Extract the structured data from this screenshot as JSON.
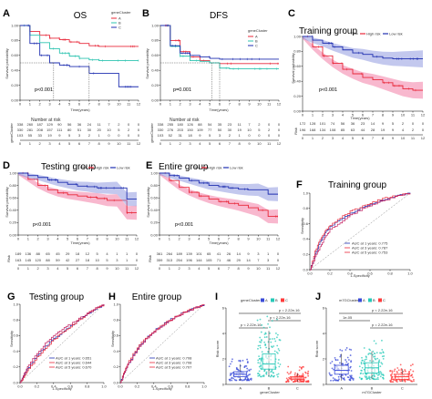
{
  "panels": [
    {
      "id": "A",
      "label": "A",
      "title": "OS",
      "pvalue": "p<0.001",
      "xlabel": "Time(years)",
      "ylabel": "Survival probability",
      "legend_title": "geneCluster",
      "legend": [
        "A",
        "B",
        "C"
      ],
      "risk_title": "Number at risk",
      "risk_axis": "geneCluster",
      "risk_rows": [
        [
          "338",
          "260",
          "187",
          "129",
          "90",
          "56",
          "36",
          "24",
          "11",
          "7",
          "2",
          "0",
          "0"
        ],
        [
          "330",
          "281",
          "208",
          "157",
          "111",
          "80",
          "51",
          "30",
          "20",
          "10",
          "5",
          "2",
          "0"
        ],
        [
          "103",
          "55",
          "33",
          "19",
          "9",
          "5",
          "3",
          "2",
          "1",
          "0",
          "0",
          "0",
          "0"
        ]
      ]
    },
    {
      "id": "B",
      "label": "B",
      "title": "DFS",
      "pvalue": "p=0.001",
      "xlabel": "Time(years)",
      "ylabel": "Survival probability",
      "legend_title": "geneCluster",
      "legend": [
        "A",
        "B",
        "C"
      ],
      "risk_title": "Number at risk",
      "risk_axis": "geneCluster",
      "risk_rows": [
        [
          "338",
          "255",
          "180",
          "126",
          "88",
          "54",
          "35",
          "23",
          "11",
          "7",
          "2",
          "0",
          "0"
        ],
        [
          "330",
          "276",
          "203",
          "150",
          "109",
          "77",
          "50",
          "30",
          "19",
          "10",
          "5",
          "2",
          "0"
        ],
        [
          "103",
          "52",
          "31",
          "18",
          "9",
          "5",
          "3",
          "2",
          "1",
          "0",
          "0",
          "0",
          "0"
        ]
      ]
    },
    {
      "id": "C",
      "label": "C",
      "title": "Training group",
      "pvalue": "p<0.001",
      "xlabel": "Time(years)",
      "ylabel": "Survival probability",
      "legend_title": "Risk",
      "legend": [
        "High risk",
        "Low risk"
      ],
      "risk_axis": "Risk",
      "risk_rows": [
        [
          "172",
          "128",
          "101",
          "74",
          "56",
          "36",
          "23",
          "14",
          "9",
          "5",
          "2",
          "0",
          "0"
        ],
        [
          "196",
          "168",
          "134",
          "108",
          "85",
          "63",
          "44",
          "28",
          "19",
          "9",
          "4",
          "2",
          "0"
        ]
      ]
    },
    {
      "id": "D",
      "label": "D",
      "title": "Testing group",
      "pvalue": "p<0.001",
      "xlabel": "Time(years)",
      "ylabel": "Survival probability",
      "legend_title": "Risk",
      "legend": [
        "High risk",
        "Low risk"
      ],
      "risk_axis": "Risk",
      "risk_rows": [
        [
          "189",
          "136",
          "88",
          "65",
          "45",
          "29",
          "18",
          "12",
          "5",
          "4",
          "1",
          "1",
          "0"
        ],
        [
          "163",
          "145",
          "120",
          "88",
          "59",
          "42",
          "27",
          "18",
          "10",
          "5",
          "3",
          "1",
          "0"
        ]
      ]
    },
    {
      "id": "E",
      "label": "E",
      "title": "Entire group",
      "pvalue": "p<0.001",
      "xlabel": "Time(years)",
      "ylabel": "Survival probability",
      "legend_title": "Risk",
      "legend": [
        "High risk",
        "Low risk"
      ],
      "risk_axis": "Risk",
      "risk_rows": [
        [
          "361",
          "264",
          "189",
          "139",
          "101",
          "65",
          "41",
          "26",
          "14",
          "9",
          "3",
          "1",
          "0"
        ],
        [
          "359",
          "313",
          "254",
          "196",
          "144",
          "105",
          "71",
          "46",
          "29",
          "14",
          "7",
          "3",
          "0"
        ]
      ]
    },
    {
      "id": "F",
      "label": "F",
      "title": "Training group",
      "xlabel": "1-Specificity",
      "ylabel": "Sensitivity",
      "legend": [
        "AUC at 1 years: 0.775",
        "AUC at 3 years: 0.787",
        "AUC at 5 years: 0.753"
      ]
    },
    {
      "id": "G",
      "label": "G",
      "title": "Testing group",
      "xlabel": "1-Specificity",
      "ylabel": "Sensitivity",
      "legend": [
        "AUC at 1 years: 0.651",
        "AUC at 3 years: 0.644",
        "AUC at 5 years: 0.670"
      ]
    },
    {
      "id": "H",
      "label": "H",
      "title": "Entire group",
      "xlabel": "1-Specificity",
      "ylabel": "Sensitivity",
      "legend": [
        "AUC at 1 years: 0.708",
        "AUC at 3 years: 0.708",
        "AUC at 5 years: 0.707"
      ]
    },
    {
      "id": "I",
      "label": "I",
      "legend_title": "geneCluster",
      "legend": [
        "A",
        "B",
        "C"
      ],
      "xlabel": "geneCluster",
      "ylabel": "Risk score",
      "annotations": [
        "p < 2.22e-16",
        "p < 2.22e-16",
        "p = 2.22e-16"
      ]
    },
    {
      "id": "J",
      "label": "J",
      "legend_title": "m7GCluster",
      "legend": [
        "A",
        "B",
        "C"
      ],
      "xlabel": "m7GCluster",
      "ylabel": "Risk score",
      "annotations": [
        "p = 2.22e-16",
        "1e-05",
        "p < 2.22e-16"
      ]
    }
  ],
  "colors": {
    "red": "#e8283a",
    "teal": "#2ec4b0",
    "blue": "#1f2fb0",
    "pink": "#f06292",
    "lightblue": "#7b86d9",
    "boxred": "#ff3b3b",
    "boxteal": "#27c9b8",
    "boxblue": "#3a4bd8"
  },
  "chart_data": [
    {
      "type": "line",
      "panel": "A",
      "xlim": [
        0,
        12
      ],
      "ylim": [
        0,
        1
      ],
      "x": [
        0,
        1,
        2,
        3,
        4,
        5,
        6,
        7,
        8,
        9,
        10,
        11,
        12
      ],
      "series": [
        {
          "name": "A",
          "values": [
            1,
            0.92,
            0.87,
            0.83,
            0.81,
            0.78,
            0.76,
            0.73,
            0.72,
            0.72,
            0.72,
            0.72,
            0.72
          ]
        },
        {
          "name": "B",
          "values": [
            1,
            0.87,
            0.77,
            0.69,
            0.63,
            0.59,
            0.56,
            0.54,
            0.53,
            0.53,
            0.53,
            0.53,
            0.53
          ]
        },
        {
          "name": "C",
          "values": [
            1,
            0.76,
            0.6,
            0.5,
            0.47,
            0.45,
            0.45,
            0.36,
            0.36,
            0.36,
            0.18,
            0.18,
            0.18
          ]
        }
      ]
    },
    {
      "type": "line",
      "panel": "B",
      "xlim": [
        0,
        12
      ],
      "ylim": [
        0,
        1
      ],
      "x": [
        0,
        1,
        2,
        3,
        4,
        5,
        6,
        7,
        8,
        9,
        10,
        11,
        12
      ],
      "series": [
        {
          "name": "A",
          "values": [
            1,
            0.8,
            0.65,
            0.58,
            0.53,
            0.5,
            0.49,
            0.49,
            0.49,
            0.49,
            0.49,
            0.49,
            0.49
          ]
        },
        {
          "name": "B",
          "values": [
            1,
            0.72,
            0.59,
            0.53,
            0.52,
            0.5,
            0.43,
            0.42,
            0.42,
            0.42,
            0.42,
            0.42,
            0.42
          ]
        },
        {
          "name": "C",
          "values": [
            1,
            0.73,
            0.63,
            0.6,
            0.58,
            0.56,
            0.55,
            0.55,
            0.55,
            0.55,
            0.55,
            0.55,
            0.55
          ]
        }
      ]
    },
    {
      "type": "line",
      "panel": "C",
      "xlim": [
        0,
        12
      ],
      "ylim": [
        0,
        1
      ],
      "x": [
        0,
        1,
        2,
        3,
        4,
        5,
        6,
        7,
        8,
        9,
        10,
        11,
        12
      ],
      "series": [
        {
          "name": "High risk",
          "values": [
            1,
            0.86,
            0.74,
            0.64,
            0.56,
            0.5,
            0.45,
            0.42,
            0.38,
            0.34,
            0.3,
            0.28,
            0.28
          ]
        },
        {
          "name": "Low risk",
          "values": [
            1,
            0.95,
            0.91,
            0.86,
            0.82,
            0.78,
            0.76,
            0.73,
            0.71,
            0.7,
            0.7,
            0.7,
            0.7
          ]
        }
      ]
    },
    {
      "type": "line",
      "panel": "D",
      "xlim": [
        0,
        12
      ],
      "ylim": [
        0,
        1
      ],
      "x": [
        0,
        1,
        2,
        3,
        4,
        5,
        6,
        7,
        8,
        9,
        10,
        11,
        12
      ],
      "series": [
        {
          "name": "High risk",
          "values": [
            1,
            0.9,
            0.8,
            0.73,
            0.68,
            0.65,
            0.63,
            0.61,
            0.59,
            0.56,
            0.56,
            0.36,
            0.36
          ]
        },
        {
          "name": "Low risk",
          "values": [
            1,
            0.96,
            0.93,
            0.89,
            0.85,
            0.82,
            0.79,
            0.78,
            0.76,
            0.76,
            0.76,
            0.58,
            0.58
          ]
        }
      ]
    },
    {
      "type": "line",
      "panel": "E",
      "xlim": [
        0,
        12
      ],
      "ylim": [
        0,
        1
      ],
      "x": [
        0,
        1,
        2,
        3,
        4,
        5,
        6,
        7,
        8,
        9,
        10,
        11,
        12
      ],
      "series": [
        {
          "name": "High risk",
          "values": [
            1,
            0.88,
            0.77,
            0.69,
            0.63,
            0.58,
            0.54,
            0.51,
            0.48,
            0.44,
            0.4,
            0.3,
            0.3
          ]
        },
        {
          "name": "Low risk",
          "values": [
            1,
            0.96,
            0.92,
            0.88,
            0.84,
            0.8,
            0.78,
            0.76,
            0.74,
            0.73,
            0.73,
            0.66,
            0.66
          ]
        }
      ]
    },
    {
      "type": "line",
      "panel": "F",
      "xlim": [
        0,
        1
      ],
      "ylim": [
        0,
        1
      ],
      "series": [
        {
          "name": "AUC at 1 years: 0.775",
          "x": [
            0,
            0.05,
            0.1,
            0.15,
            0.2,
            0.3,
            0.4,
            0.5,
            0.6,
            0.7,
            0.8,
            0.9,
            1
          ],
          "values": [
            0,
            0.2,
            0.36,
            0.48,
            0.56,
            0.66,
            0.73,
            0.8,
            0.86,
            0.9,
            0.94,
            0.98,
            1
          ]
        },
        {
          "name": "AUC at 3 years: 0.787",
          "x": [
            0,
            0.05,
            0.1,
            0.15,
            0.2,
            0.3,
            0.4,
            0.5,
            0.6,
            0.7,
            0.8,
            0.9,
            1
          ],
          "values": [
            0,
            0.24,
            0.4,
            0.5,
            0.58,
            0.68,
            0.76,
            0.82,
            0.87,
            0.92,
            0.95,
            0.98,
            1
          ]
        },
        {
          "name": "AUC at 5 years: 0.753",
          "x": [
            0,
            0.05,
            0.1,
            0.15,
            0.2,
            0.3,
            0.4,
            0.5,
            0.6,
            0.7,
            0.8,
            0.9,
            1
          ],
          "values": [
            0,
            0.16,
            0.3,
            0.42,
            0.52,
            0.62,
            0.71,
            0.78,
            0.84,
            0.89,
            0.93,
            0.97,
            1
          ]
        }
      ]
    },
    {
      "type": "line",
      "panel": "G",
      "xlim": [
        0,
        1
      ],
      "ylim": [
        0,
        1
      ],
      "series": [
        {
          "name": "AUC at 1 years: 0.651",
          "x": [
            0,
            0.05,
            0.1,
            0.2,
            0.3,
            0.4,
            0.5,
            0.6,
            0.7,
            0.8,
            0.9,
            1
          ],
          "values": [
            0,
            0.1,
            0.2,
            0.34,
            0.46,
            0.56,
            0.64,
            0.72,
            0.8,
            0.87,
            0.94,
            1
          ]
        },
        {
          "name": "AUC at 3 years: 0.644",
          "x": [
            0,
            0.05,
            0.1,
            0.2,
            0.3,
            0.4,
            0.5,
            0.6,
            0.7,
            0.8,
            0.9,
            1
          ],
          "values": [
            0,
            0.08,
            0.18,
            0.32,
            0.44,
            0.55,
            0.64,
            0.72,
            0.8,
            0.88,
            0.95,
            1
          ]
        },
        {
          "name": "AUC at 5 years: 0.670",
          "x": [
            0,
            0.05,
            0.1,
            0.2,
            0.3,
            0.4,
            0.5,
            0.6,
            0.7,
            0.8,
            0.9,
            1
          ],
          "values": [
            0,
            0.12,
            0.22,
            0.38,
            0.5,
            0.6,
            0.68,
            0.75,
            0.82,
            0.88,
            0.95,
            1
          ]
        }
      ]
    },
    {
      "type": "line",
      "panel": "H",
      "xlim": [
        0,
        1
      ],
      "ylim": [
        0,
        1
      ],
      "series": [
        {
          "name": "AUC at 1 years: 0.708",
          "x": [
            0,
            0.05,
            0.1,
            0.2,
            0.3,
            0.4,
            0.5,
            0.6,
            0.7,
            0.8,
            0.9,
            1
          ],
          "values": [
            0,
            0.14,
            0.26,
            0.44,
            0.56,
            0.66,
            0.74,
            0.81,
            0.87,
            0.92,
            0.96,
            1
          ]
        },
        {
          "name": "AUC at 3 years: 0.708",
          "x": [
            0,
            0.05,
            0.1,
            0.2,
            0.3,
            0.4,
            0.5,
            0.6,
            0.7,
            0.8,
            0.9,
            1
          ],
          "values": [
            0,
            0.15,
            0.28,
            0.45,
            0.57,
            0.66,
            0.74,
            0.81,
            0.87,
            0.92,
            0.96,
            1
          ]
        },
        {
          "name": "AUC at 5 years: 0.707",
          "x": [
            0,
            0.05,
            0.1,
            0.2,
            0.3,
            0.4,
            0.5,
            0.6,
            0.7,
            0.8,
            0.9,
            1
          ],
          "values": [
            0,
            0.13,
            0.25,
            0.43,
            0.55,
            0.65,
            0.73,
            0.8,
            0.86,
            0.91,
            0.96,
            1
          ]
        }
      ]
    },
    {
      "type": "box",
      "panel": "I",
      "categories": [
        "A",
        "B",
        "C"
      ],
      "boxes": [
        {
          "name": "A",
          "min": 0.3,
          "q1": 0.6,
          "median": 0.8,
          "q3": 1.0,
          "max": 1.6
        },
        {
          "name": "B",
          "min": 0.6,
          "q1": 1.2,
          "median": 1.6,
          "q3": 2.4,
          "max": 4.2
        },
        {
          "name": "C",
          "min": 0.2,
          "q1": 0.4,
          "median": 0.5,
          "q3": 0.6,
          "max": 0.9
        }
      ],
      "ylim": [
        0,
        6
      ]
    },
    {
      "type": "box",
      "panel": "J",
      "categories": [
        "A",
        "B",
        "C"
      ],
      "boxes": [
        {
          "name": "A",
          "min": 0.3,
          "q1": 0.8,
          "median": 1.1,
          "q3": 1.5,
          "max": 2.4
        },
        {
          "name": "B",
          "min": 0.4,
          "q1": 0.9,
          "median": 1.3,
          "q3": 1.7,
          "max": 2.6
        },
        {
          "name": "C",
          "min": 0.2,
          "q1": 0.4,
          "median": 0.6,
          "q3": 0.8,
          "max": 1.2
        }
      ],
      "ylim": [
        0,
        6
      ]
    }
  ]
}
